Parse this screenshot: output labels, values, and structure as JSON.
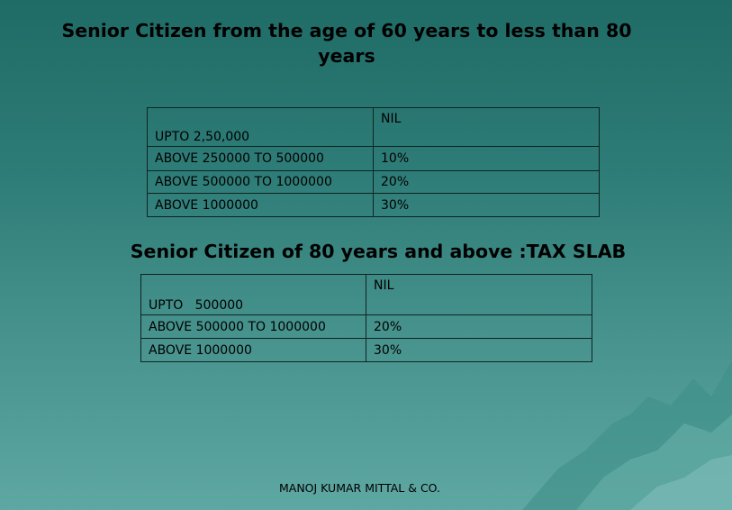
{
  "heading_1": "Senior Citizen from the age of 60 years to less than 80 years",
  "heading_2": "Senior Citizen of 80 years and above  :TAX SLAB",
  "table_60_80": {
    "rows": [
      {
        "slab": "UPTO 2,50,000",
        "rate": "NIL"
      },
      {
        "slab": "ABOVE 250000 TO 500000",
        "rate": "10%"
      },
      {
        "slab": "ABOVE 500000 TO 1000000",
        "rate": "20%"
      },
      {
        "slab": "ABOVE 1000000",
        "rate": "30%"
      }
    ]
  },
  "table_80_above": {
    "rows": [
      {
        "slab": "UPTO   500000",
        "rate": "NIL"
      },
      {
        "slab": "ABOVE 500000 TO 1000000",
        "rate": "20%"
      },
      {
        "slab": "ABOVE 1000000",
        "rate": "30%"
      }
    ]
  },
  "footer": "MANOJ KUMAR MITTAL & CO.",
  "colors": {
    "background": "#2f7d78",
    "border": "#0e2422",
    "text": "#000000"
  }
}
